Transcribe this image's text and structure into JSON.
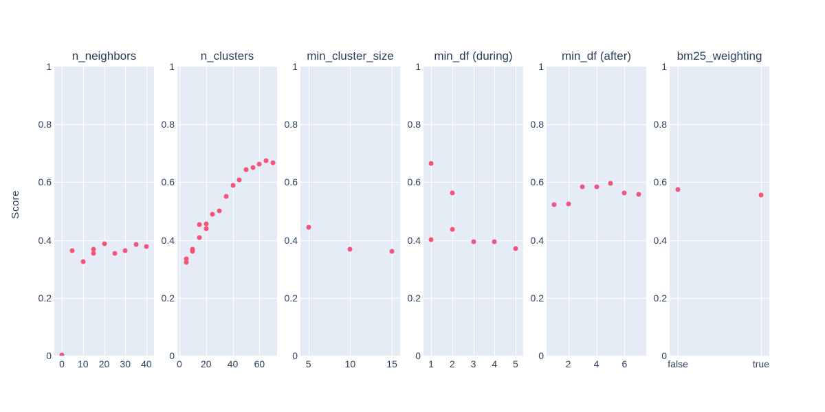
{
  "chart_data": {
    "type": "scatter",
    "title": "",
    "ylabel": "Score",
    "ylim": [
      0,
      1
    ],
    "grid": true,
    "legend": "none",
    "marker_color": "#f2547c",
    "plot_bg": "#e5ecf6",
    "grid_color": "#ffffff",
    "font_color": "#2a3f5f",
    "yticks": [
      {
        "v": 0,
        "label": "0"
      },
      {
        "v": 0.2,
        "label": "0.2"
      },
      {
        "v": 0.4,
        "label": "0.4"
      },
      {
        "v": 0.6,
        "label": "0.6"
      },
      {
        "v": 0.8,
        "label": "0.8"
      },
      {
        "v": 1,
        "label": "1"
      }
    ],
    "panels": [
      {
        "title": "n_neighbors",
        "x_type": "linear",
        "xrange": [
          -3.6,
          43.6
        ],
        "xticks": [
          {
            "v": 0,
            "label": "0"
          },
          {
            "v": 10,
            "label": "10"
          },
          {
            "v": 20,
            "label": "20"
          },
          {
            "v": 30,
            "label": "30"
          },
          {
            "v": 40,
            "label": "40"
          }
        ],
        "points": [
          [
            0,
            0.003
          ],
          [
            5,
            0.364
          ],
          [
            10,
            0.325
          ],
          [
            15,
            0.368
          ],
          [
            15,
            0.355
          ],
          [
            20,
            0.387
          ],
          [
            25,
            0.355
          ],
          [
            30,
            0.364
          ],
          [
            35,
            0.385
          ],
          [
            40,
            0.378
          ]
        ]
      },
      {
        "title": "n_clusters",
        "x_type": "linear",
        "xrange": [
          -1.5,
          73.2
        ],
        "xticks": [
          {
            "v": 0,
            "label": "0"
          },
          {
            "v": 20,
            "label": "20"
          },
          {
            "v": 40,
            "label": "40"
          },
          {
            "v": 60,
            "label": "60"
          }
        ],
        "points": [
          [
            5,
            0.335
          ],
          [
            5,
            0.322
          ],
          [
            10,
            0.368
          ],
          [
            10,
            0.36
          ],
          [
            15,
            0.408
          ],
          [
            15,
            0.453
          ],
          [
            20,
            0.456
          ],
          [
            20,
            0.44
          ],
          [
            25,
            0.49
          ],
          [
            30,
            0.502
          ],
          [
            35,
            0.55
          ],
          [
            40,
            0.59
          ],
          [
            45,
            0.607
          ],
          [
            50,
            0.643
          ],
          [
            55,
            0.652
          ],
          [
            60,
            0.663
          ],
          [
            65,
            0.674
          ],
          [
            70,
            0.668
          ]
        ]
      },
      {
        "title": "min_cluster_size",
        "x_type": "linear",
        "xrange": [
          4.04,
          15.98
        ],
        "xticks": [
          {
            "v": 5,
            "label": "5"
          },
          {
            "v": 10,
            "label": "10"
          },
          {
            "v": 15,
            "label": "15"
          }
        ],
        "points": [
          [
            5,
            0.443
          ],
          [
            10,
            0.367
          ],
          [
            15,
            0.361
          ]
        ]
      },
      {
        "title": "min_df (during)",
        "x_type": "linear",
        "xrange": [
          0.64,
          5.36
        ],
        "xticks": [
          {
            "v": 1,
            "label": "1"
          },
          {
            "v": 2,
            "label": "2"
          },
          {
            "v": 3,
            "label": "3"
          },
          {
            "v": 4,
            "label": "4"
          },
          {
            "v": 5,
            "label": "5"
          }
        ],
        "points": [
          [
            1,
            0.664
          ],
          [
            1,
            0.401
          ],
          [
            2,
            0.563
          ],
          [
            2,
            0.436
          ],
          [
            3,
            0.395
          ],
          [
            4,
            0.395
          ],
          [
            5,
            0.37
          ]
        ]
      },
      {
        "title": "min_df (after)",
        "x_type": "linear",
        "xrange": [
          0.46,
          7.54
        ],
        "xticks": [
          {
            "v": 2,
            "label": "2"
          },
          {
            "v": 4,
            "label": "4"
          },
          {
            "v": 6,
            "label": "6"
          }
        ],
        "points": [
          [
            1,
            0.522
          ],
          [
            2,
            0.526
          ],
          [
            3,
            0.585
          ],
          [
            4,
            0.585
          ],
          [
            5,
            0.597
          ],
          [
            6,
            0.563
          ],
          [
            7,
            0.559
          ]
        ]
      },
      {
        "title": "bm25_weighting",
        "x_type": "category",
        "xrange": [
          -0.1,
          1.1
        ],
        "xticks": [
          {
            "v": 0,
            "label": "false"
          },
          {
            "v": 1,
            "label": "true"
          }
        ],
        "points": [
          [
            0,
            0.575
          ],
          [
            1,
            0.556
          ]
        ]
      }
    ]
  }
}
